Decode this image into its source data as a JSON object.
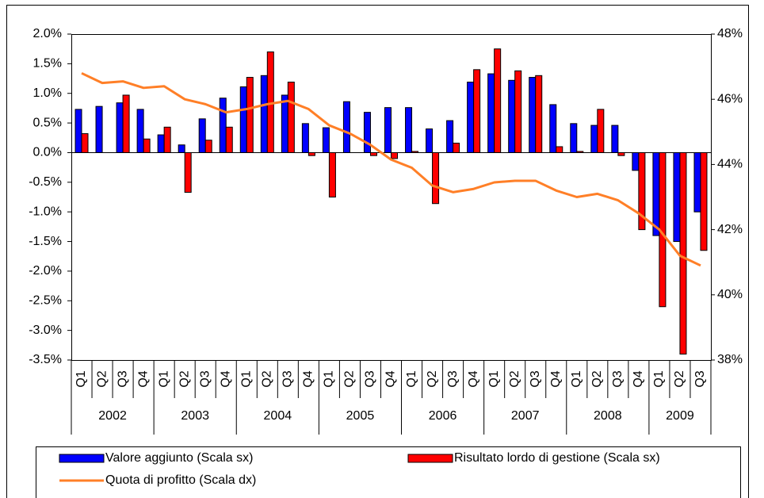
{
  "chart_data": {
    "type": "bar",
    "category_groups": [
      {
        "label": "2002",
        "categories": [
          "Q1",
          "Q2",
          "Q3",
          "Q4"
        ]
      },
      {
        "label": "2003",
        "categories": [
          "Q1",
          "Q2",
          "Q3",
          "Q4"
        ]
      },
      {
        "label": "2004",
        "categories": [
          "Q1",
          "Q2",
          "Q3",
          "Q4"
        ]
      },
      {
        "label": "2005",
        "categories": [
          "Q1",
          "Q2",
          "Q3",
          "Q4"
        ]
      },
      {
        "label": "2006",
        "categories": [
          "Q1",
          "Q2",
          "Q3",
          "Q4"
        ]
      },
      {
        "label": "2007",
        "categories": [
          "Q1",
          "Q2",
          "Q3",
          "Q4"
        ]
      },
      {
        "label": "2008",
        "categories": [
          "Q1",
          "Q2",
          "Q3",
          "Q4"
        ]
      },
      {
        "label": "2009",
        "categories": [
          "Q1",
          "Q2",
          "Q3"
        ]
      }
    ],
    "series": [
      {
        "name": "Valore aggiunto (Scala sx)",
        "color": "#0000ff",
        "values": [
          0.73,
          0.78,
          0.84,
          0.73,
          0.3,
          0.13,
          0.57,
          0.92,
          1.11,
          1.3,
          0.97,
          0.49,
          0.42,
          0.86,
          0.68,
          0.76,
          0.76,
          0.4,
          0.54,
          1.19,
          1.33,
          1.22,
          1.27,
          0.81,
          0.49,
          0.46,
          0.46,
          -0.3,
          -1.4,
          -1.5,
          -1.0
        ]
      },
      {
        "name": "Risultato lordo di gestione (Scala sx)",
        "color": "#ff0000",
        "values": [
          0.32,
          0,
          0.97,
          0.23,
          0.43,
          -0.67,
          0.21,
          0.43,
          1.27,
          1.7,
          1.19,
          -0.05,
          -0.75,
          0,
          -0.05,
          -0.1,
          0.02,
          -0.86,
          0.16,
          1.4,
          1.75,
          1.38,
          1.3,
          0.1,
          0.02,
          0.73,
          -0.05,
          -1.3,
          -2.6,
          -3.4,
          -1.65
        ]
      },
      {
        "name": "Quota di profitto (Scala dx)",
        "color": "#ff7f27",
        "type": "line",
        "axis": "y2",
        "values": [
          46.8,
          46.5,
          46.55,
          46.35,
          46.4,
          46.0,
          45.85,
          45.6,
          45.7,
          45.85,
          45.95,
          45.7,
          45.2,
          44.95,
          44.6,
          44.15,
          43.9,
          43.35,
          43.15,
          43.25,
          43.45,
          43.5,
          43.5,
          43.2,
          43.0,
          43.1,
          42.9,
          42.5,
          42.0,
          41.2,
          40.9
        ]
      }
    ],
    "ylim": [
      -3.5,
      2.0
    ],
    "yticks": [
      {
        "value": -3.5,
        "label": "-3.5%"
      },
      {
        "value": -3.0,
        "label": "-3.0%"
      },
      {
        "value": -2.5,
        "label": "-2.5%"
      },
      {
        "value": -2.0,
        "label": "-2.0%"
      },
      {
        "value": -1.5,
        "label": "-1.5%"
      },
      {
        "value": -1.0,
        "label": "-1.0%"
      },
      {
        "value": -0.5,
        "label": "-0.5%"
      },
      {
        "value": 0.0,
        "label": "0.0%"
      },
      {
        "value": 0.5,
        "label": "0.5%"
      },
      {
        "value": 1.0,
        "label": "1.0%"
      },
      {
        "value": 1.5,
        "label": "1.5%"
      },
      {
        "value": 2.0,
        "label": "2.0%"
      }
    ],
    "y2lim": [
      38,
      48
    ],
    "y2ticks": [
      {
        "value": 38,
        "label": "38%"
      },
      {
        "value": 40,
        "label": "40%"
      },
      {
        "value": 42,
        "label": "42%"
      },
      {
        "value": 44,
        "label": "44%"
      },
      {
        "value": 46,
        "label": "46%"
      },
      {
        "value": 48,
        "label": "48%"
      }
    ]
  }
}
